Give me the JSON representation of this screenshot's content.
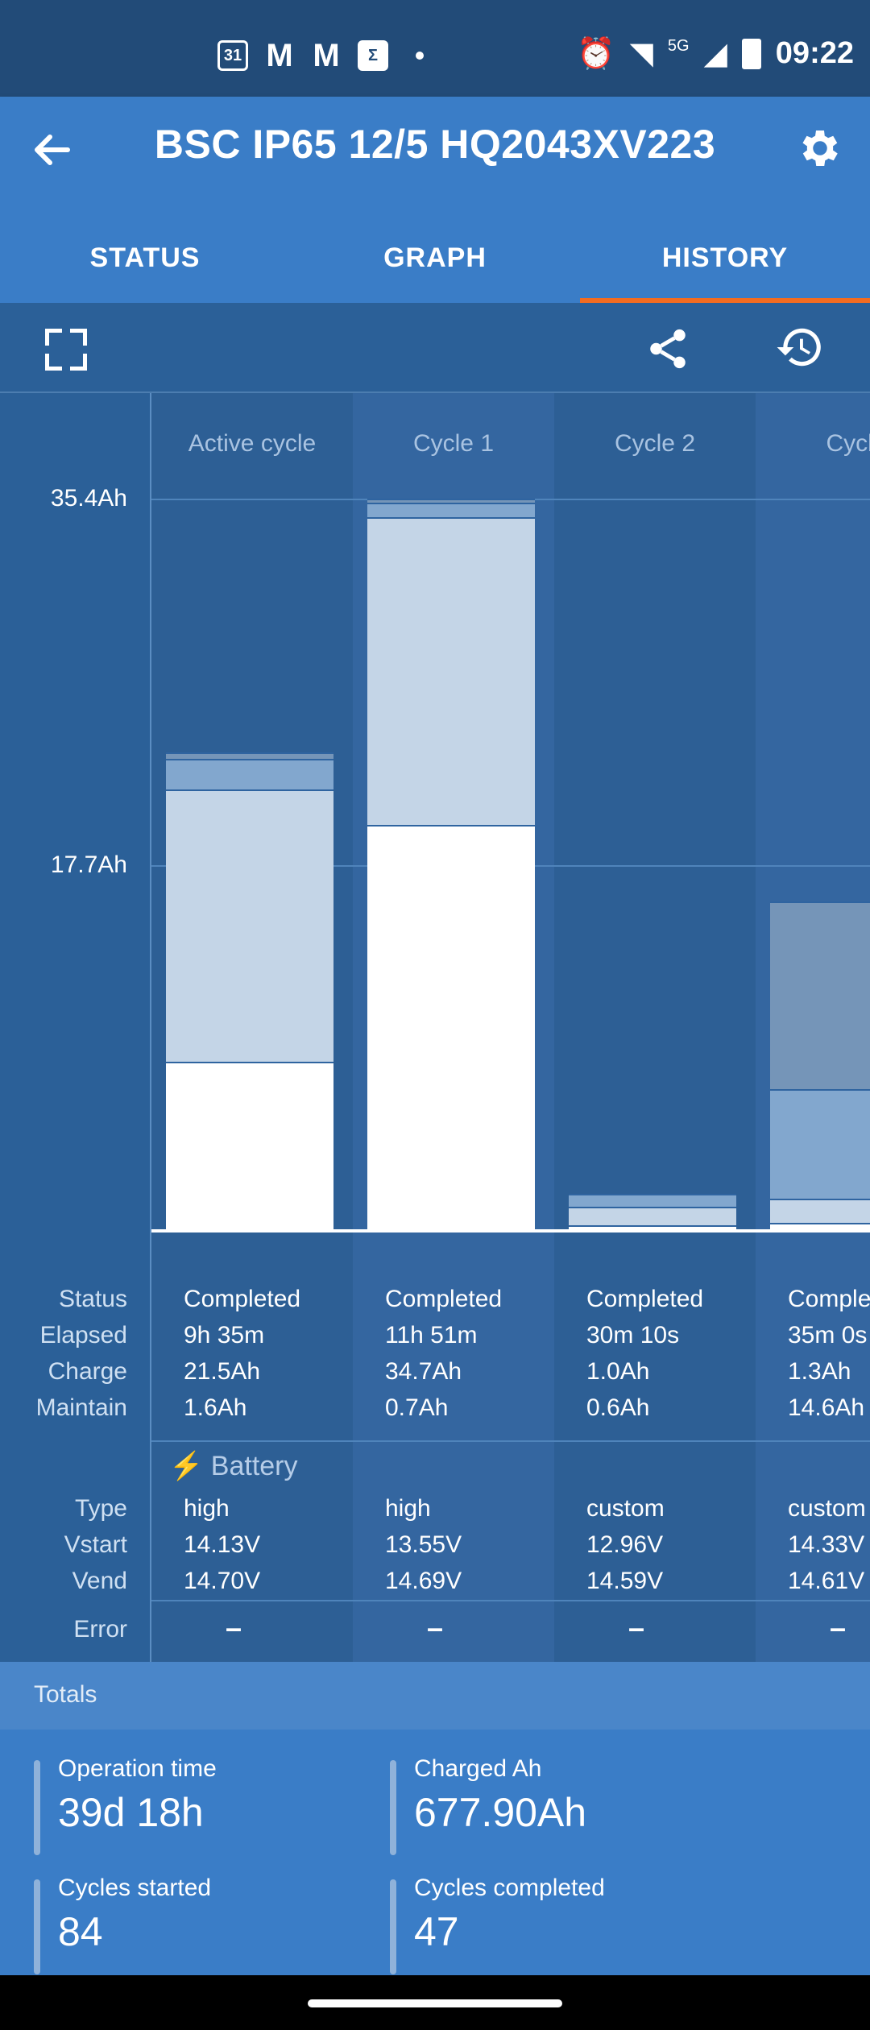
{
  "status_bar": {
    "left_icons": [
      "calendar-icon",
      "gmail-icon",
      "gmail-icon",
      "sigma-icon",
      "dot-icon"
    ],
    "calendar_label": "31",
    "network": "5G",
    "time": "09:22"
  },
  "app_bar": {
    "title": "BSC IP65 12/5 HQ2043XV223"
  },
  "tabs": [
    {
      "label": "STATUS"
    },
    {
      "label": "GRAPH"
    },
    {
      "label": "HISTORY",
      "selected": true
    }
  ],
  "colors": {
    "accent": "#f36c21",
    "header": "#3a7dc7",
    "background": "#2b6098"
  },
  "chart_data": {
    "type": "bar",
    "y_ticks": [
      "35.4Ah",
      "17.7Ah"
    ],
    "ylim": [
      0,
      35.4
    ],
    "categories": [
      "Active cycle",
      "Cycle 1",
      "Cycle 2",
      "Cycle"
    ],
    "series": [
      {
        "values": [
          8.1,
          19.6,
          0.2,
          0.3
        ]
      },
      {
        "values": [
          13.2,
          14.9,
          0.9,
          1.2
        ]
      },
      {
        "values": [
          1.5,
          0.7,
          0.6,
          5.3
        ]
      },
      {
        "values": [
          0.3,
          0.2,
          0,
          9.1
        ]
      }
    ]
  },
  "rows": {
    "labels": {
      "status": "Status",
      "elapsed": "Elapsed",
      "charge": "Charge",
      "maintain": "Maintain",
      "battery": "Battery",
      "type": "Type",
      "vstart": "Vstart",
      "vend": "Vend",
      "error": "Error"
    },
    "cycles": [
      {
        "status": "Completed",
        "elapsed": "9h 35m",
        "charge": "21.5Ah",
        "maintain": "1.6Ah",
        "type": "high",
        "vstart": "14.13V",
        "vend": "14.70V",
        "error": "–"
      },
      {
        "status": "Completed",
        "elapsed": "11h 51m",
        "charge": "34.7Ah",
        "maintain": "0.7Ah",
        "type": "high",
        "vstart": "13.55V",
        "vend": "14.69V",
        "error": "–"
      },
      {
        "status": "Completed",
        "elapsed": "30m 10s",
        "charge": "1.0Ah",
        "maintain": "0.6Ah",
        "type": "custom",
        "vstart": "12.96V",
        "vend": "14.59V",
        "error": "–"
      },
      {
        "status": "Comple",
        "elapsed": "35m 0s",
        "charge": "1.3Ah",
        "maintain": "14.6Ah",
        "type": "custom",
        "vstart": "14.33V",
        "vend": "14.61V",
        "error": "–"
      }
    ]
  },
  "totals": {
    "heading": "Totals",
    "items": [
      {
        "label": "Operation time",
        "value": "39d 18h"
      },
      {
        "label": "Charged Ah",
        "value": "677.90Ah"
      },
      {
        "label": "Cycles started",
        "value": "84"
      },
      {
        "label": "Cycles completed",
        "value": "47"
      }
    ]
  }
}
